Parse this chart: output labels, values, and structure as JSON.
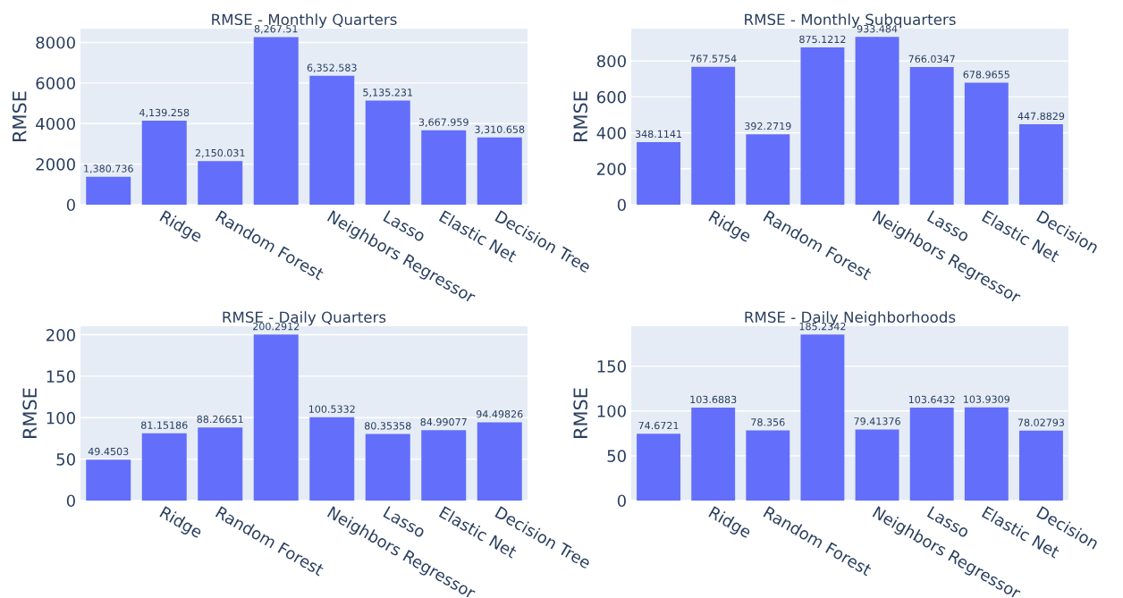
{
  "chart_data": [
    {
      "type": "bar",
      "title": "RMSE - Monthly Quarters",
      "ylabel": "RMSE",
      "categories": [
        null,
        "Ridge",
        "Random Forest",
        null,
        "Neighbors Regressor",
        "Lasso",
        "Elastic Net",
        "Decision Tree"
      ],
      "values": [
        1380.736,
        4139.258,
        2150.031,
        8267.51,
        6352.583,
        5135.231,
        3667.959,
        3310.658
      ],
      "value_labels": [
        "1,380.736",
        "4,139.258",
        "2,150.031",
        "8,267.51",
        "6,352.583",
        "5,135.231",
        "3,667.959",
        "3,310.658"
      ],
      "color": "#636efa",
      "ylim": [
        0,
        8681
      ],
      "yticks": [
        0,
        2000,
        4000,
        6000,
        8000
      ],
      "grid": "y"
    },
    {
      "type": "bar",
      "title": "RMSE - Monthly Subquarters",
      "ylabel": "RMSE",
      "categories": [
        null,
        "Ridge",
        "Random Forest",
        null,
        "Neighbors Regressor",
        "Lasso",
        "Elastic Net",
        "Decision"
      ],
      "values": [
        348.1141,
        767.5754,
        392.2719,
        875.1212,
        933.484,
        766.0347,
        678.9655,
        447.8829
      ],
      "value_labels": [
        "348.1141",
        "767.5754",
        "392.2719",
        "875.1212",
        "933.484",
        "766.0347",
        "678.9655",
        "447.8829"
      ],
      "color": "#636efa",
      "ylim": [
        0,
        980
      ],
      "yticks": [
        0,
        200,
        400,
        600,
        800
      ],
      "grid": "y"
    },
    {
      "type": "bar",
      "title": "RMSE - Daily Quarters",
      "ylabel": "RMSE",
      "categories": [
        null,
        "Ridge",
        "Random Forest",
        null,
        "Neighbors Regressor",
        "Lasso",
        "Elastic Net",
        "Decision Tree"
      ],
      "values": [
        49.4503,
        81.15186,
        88.26651,
        200.2912,
        100.5332,
        80.35358,
        84.99077,
        94.49826
      ],
      "value_labels": [
        "49.4503",
        "81.15186",
        "88.26651",
        "200.2912",
        "100.5332",
        "80.35358",
        "84.99077",
        "94.49826"
      ],
      "color": "#636efa",
      "ylim": [
        0,
        210.3
      ],
      "yticks": [
        0,
        50,
        100,
        150,
        200
      ],
      "grid": "y"
    },
    {
      "type": "bar",
      "title": "RMSE - Daily Neighborhoods",
      "ylabel": "RMSE",
      "categories": [
        null,
        "Ridge",
        "Random Forest",
        null,
        "Neighbors Regressor",
        "Lasso",
        "Elastic Net",
        "Decision"
      ],
      "values": [
        74.6721,
        103.6883,
        78.356,
        185.2342,
        79.41376,
        103.6432,
        103.9309,
        78.02793
      ],
      "value_labels": [
        "74.6721",
        "103.6883",
        "78.356",
        "185.2342",
        "79.41376",
        "103.6432",
        "103.9309",
        "78.02793"
      ],
      "color": "#636efa",
      "ylim": [
        0,
        194.5
      ],
      "yticks": [
        0,
        50,
        100,
        150
      ],
      "grid": "y"
    }
  ]
}
